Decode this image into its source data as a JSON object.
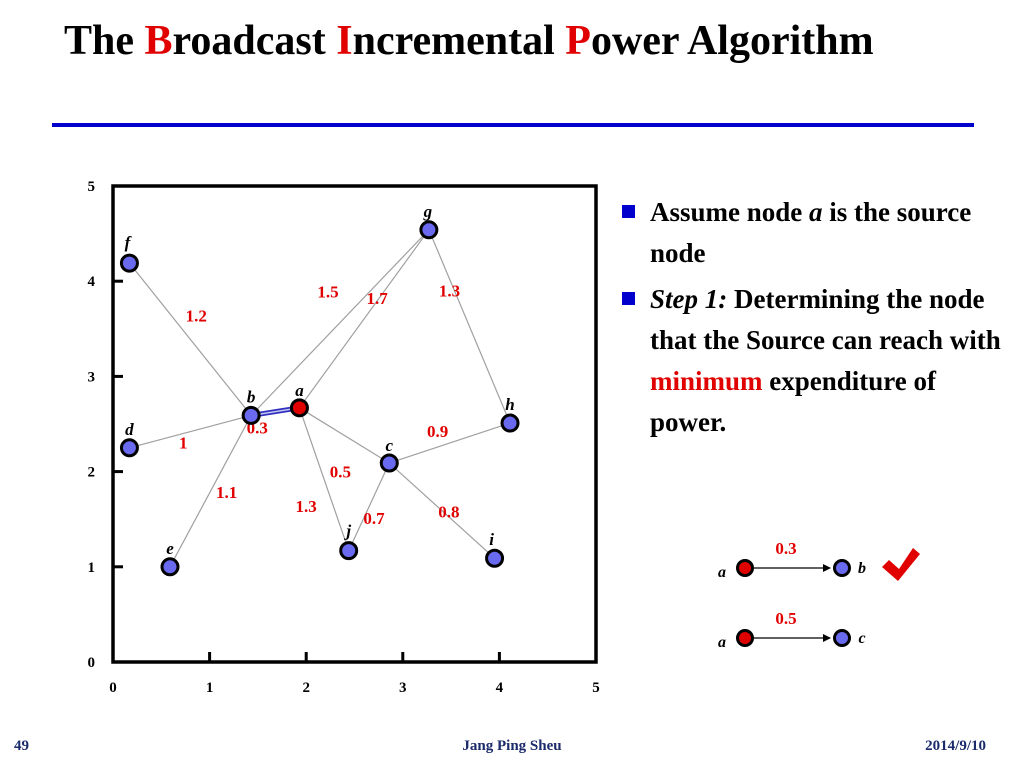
{
  "slide": {
    "title_parts": [
      {
        "text": "The ",
        "highlight": false
      },
      {
        "text": "B",
        "highlight": true
      },
      {
        "text": "roadcast ",
        "highlight": false
      },
      {
        "text": "I",
        "highlight": true
      },
      {
        "text": "ncremental ",
        "highlight": false
      },
      {
        "text": "P",
        "highlight": true
      },
      {
        "text": "ower Algorithm",
        "highlight": false
      }
    ],
    "bullets": [
      [
        {
          "text": "Assume node ",
          "style": "normal"
        },
        {
          "text": "a",
          "style": "italic"
        },
        {
          "text": " is the source node",
          "style": "normal"
        }
      ],
      [
        {
          "text": "Step 1:",
          "style": "italic"
        },
        {
          "text": " Determining the node that the Source can reach with ",
          "style": "normal"
        },
        {
          "text": "minimum",
          "style": "red"
        },
        {
          "text": " expenditure of power.",
          "style": "normal"
        }
      ]
    ],
    "footer": {
      "page": "49",
      "author": "Jang Ping Sheu",
      "date": "2014/9/10"
    },
    "colors": {
      "accent": "#e00000",
      "rule": "#0000cc",
      "node": "#6a6af0",
      "source_node": "#e00000",
      "edge": "#a0a0a0",
      "highlight_edge": "#3030c0"
    }
  },
  "graph": {
    "x_ticks": [
      0,
      1,
      2,
      3,
      4,
      5
    ],
    "y_ticks": [
      0,
      1,
      2,
      3,
      4,
      5
    ],
    "xlim": [
      0,
      5
    ],
    "ylim": [
      0,
      5
    ],
    "nodes": [
      {
        "id": "a",
        "x": 1.93,
        "y": 2.67,
        "source": true
      },
      {
        "id": "b",
        "x": 1.43,
        "y": 2.59
      },
      {
        "id": "c",
        "x": 2.86,
        "y": 2.09
      },
      {
        "id": "d",
        "x": 0.17,
        "y": 2.25
      },
      {
        "id": "e",
        "x": 0.59,
        "y": 1.0
      },
      {
        "id": "f",
        "x": 0.17,
        "y": 4.19
      },
      {
        "id": "g",
        "x": 3.27,
        "y": 4.54
      },
      {
        "id": "h",
        "x": 4.11,
        "y": 2.51
      },
      {
        "id": "i",
        "x": 3.95,
        "y": 1.09
      },
      {
        "id": "j",
        "x": 2.44,
        "y": 1.17
      }
    ],
    "edges": [
      {
        "from": "a",
        "to": "b",
        "weight": "0.3",
        "highlight": true
      },
      {
        "from": "a",
        "to": "c",
        "weight": "0.5"
      },
      {
        "from": "a",
        "to": "g",
        "weight": "1.7"
      },
      {
        "from": "a",
        "to": "j",
        "weight": "1.3"
      },
      {
        "from": "b",
        "to": "f",
        "weight": "1.2"
      },
      {
        "from": "b",
        "to": "d",
        "weight": "1"
      },
      {
        "from": "b",
        "to": "e",
        "weight": "1.1"
      },
      {
        "from": "b",
        "to": "g",
        "weight": "1.5"
      },
      {
        "from": "g",
        "to": "h",
        "weight": "1.3"
      },
      {
        "from": "c",
        "to": "h",
        "weight": "0.9"
      },
      {
        "from": "c",
        "to": "i",
        "weight": "0.8"
      },
      {
        "from": "c",
        "to": "j",
        "weight": "0.7"
      }
    ]
  },
  "legend": [
    {
      "from": "a",
      "to": "b",
      "weight": "0.3",
      "selected": true
    },
    {
      "from": "a",
      "to": "c",
      "weight": "0.5",
      "selected": false
    }
  ]
}
